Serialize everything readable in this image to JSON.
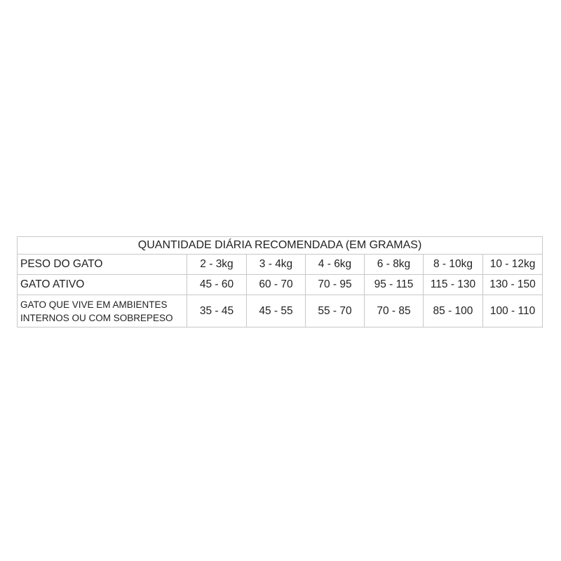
{
  "table": {
    "title": "QUANTIDADE DIÁRIA RECOMENDADA (EM GRAMAS)",
    "rows": [
      {
        "label": "PESO DO GATO",
        "values": [
          "2 - 3kg",
          "3 - 4kg",
          "4 - 6kg",
          "6 - 8kg",
          "8 - 10kg",
          "10 - 12kg"
        ]
      },
      {
        "label": "GATO ATIVO",
        "values": [
          "45 - 60",
          "60 - 70",
          "70 - 95",
          "95 - 115",
          "115 - 130",
          "130 - 150"
        ]
      },
      {
        "label_line1": "GATO QUE VIVE EM AMBIENTES",
        "label_line2": "INTERNOS OU COM SOBREPESO",
        "values": [
          "35 - 45",
          "45 - 55",
          "55 - 70",
          "70 - 85",
          "85 - 100",
          "100 - 110"
        ]
      }
    ]
  }
}
